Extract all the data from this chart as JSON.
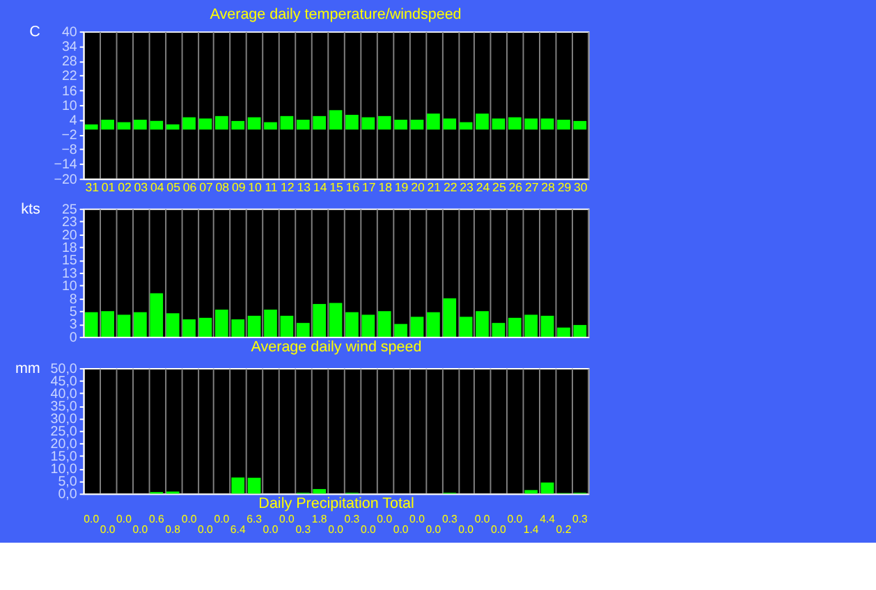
{
  "chart_data": [
    {
      "type": "bar",
      "title": "Average daily temperature/windspeed",
      "ylabel": "C",
      "categories": [
        "31",
        "01",
        "02",
        "03",
        "04",
        "05",
        "06",
        "07",
        "08",
        "09",
        "10",
        "11",
        "12",
        "13",
        "14",
        "15",
        "16",
        "17",
        "18",
        "19",
        "20",
        "21",
        "22",
        "23",
        "24",
        "25",
        "26",
        "27",
        "28",
        "29",
        "30"
      ],
      "values": [
        2.1,
        4.0,
        3.0,
        4.0,
        3.5,
        2.1,
        5.0,
        4.5,
        5.5,
        3.5,
        5.0,
        3.0,
        5.5,
        4.0,
        5.5,
        7.9,
        6.0,
        5.0,
        5.5,
        4.0,
        4.0,
        6.5,
        4.5,
        3.0,
        6.5,
        4.5,
        5.0,
        4.5,
        4.5,
        4.0,
        3.5
      ],
      "color": "#00ff00",
      "ylim": [
        -20,
        40
      ],
      "yticks": [
        -20,
        -14,
        -8,
        -2,
        4,
        10,
        16,
        22,
        28,
        34,
        40
      ],
      "grid": "x"
    },
    {
      "type": "bar",
      "xlabel": "Average daily wind speed",
      "ylabel": "kts",
      "categories": [
        "31",
        "01",
        "02",
        "03",
        "04",
        "05",
        "06",
        "07",
        "08",
        "09",
        "10",
        "11",
        "12",
        "13",
        "14",
        "15",
        "16",
        "17",
        "18",
        "19",
        "20",
        "21",
        "22",
        "23",
        "24",
        "25",
        "26",
        "27",
        "28",
        "29",
        "30"
      ],
      "values": [
        4.8,
        5.0,
        4.3,
        4.8,
        8.5,
        4.6,
        3.4,
        3.7,
        5.3,
        3.4,
        4.1,
        5.3,
        4.1,
        2.7,
        6.4,
        6.6,
        4.8,
        4.3,
        5.0,
        2.5,
        3.9,
        4.8,
        7.5,
        3.9,
        5.0,
        2.7,
        3.7,
        4.3,
        4.1,
        1.8,
        2.3
      ],
      "color": "#00ff00",
      "ylim": [
        0,
        25
      ],
      "yticks": [
        0,
        {
          "value": 2.5,
          "label": "3"
        },
        5,
        {
          "value": 7.5,
          "label": "8"
        },
        10,
        {
          "value": 12.5,
          "label": "13"
        },
        15,
        {
          "value": 17.5,
          "label": "18"
        },
        20,
        {
          "value": 22.5,
          "label": "23"
        },
        25
      ],
      "grid": "x",
      "tick_labels": "y"
    },
    {
      "type": "bar",
      "xlabel": "Daily Precipitation Total",
      "ylabel": "mm",
      "categories": [
        "31",
        "01",
        "02",
        "03",
        "04",
        "05",
        "06",
        "07",
        "08",
        "09",
        "10",
        "11",
        "12",
        "13",
        "14",
        "15",
        "16",
        "17",
        "18",
        "19",
        "20",
        "21",
        "22",
        "23",
        "24",
        "25",
        "26",
        "27",
        "28",
        "29",
        "30"
      ],
      "values": [
        0.0,
        0.0,
        0.0,
        0.0,
        0.6,
        0.8,
        0.0,
        0.0,
        0.0,
        6.4,
        6.3,
        0.0,
        0.0,
        0.3,
        1.8,
        0.0,
        0.3,
        0.0,
        0.0,
        0.0,
        0.0,
        0.0,
        0.3,
        0.0,
        0.0,
        0.0,
        0.0,
        1.4,
        4.4,
        0.2,
        0.3
      ],
      "value_labels": [
        "0.0",
        "0.0",
        "0.0",
        "0.0",
        "0.6",
        "0.8",
        "0.0",
        "0.0",
        "0.0",
        "6.4",
        "6.3",
        "0.0",
        "0.0",
        "0.3",
        "1.8",
        "0.0",
        "0.3",
        "0.0",
        "0.0",
        "0.0",
        "0.0",
        "0.0",
        "0.3",
        "0.0",
        "0.0",
        "0.0",
        "0.0",
        "1.4",
        "4.4",
        "0.2",
        "0.3"
      ],
      "color": "#00ff00",
      "ylim": [
        0,
        50
      ],
      "yticks": [
        {
          "value": 0,
          "label": "0,0"
        },
        {
          "value": 5,
          "label": "5,0"
        },
        {
          "value": 10,
          "label": "10,0"
        },
        {
          "value": 15,
          "label": "15,0"
        },
        {
          "value": 20,
          "label": "20,0"
        },
        {
          "value": 25,
          "label": "25,0"
        },
        {
          "value": 30,
          "label": "30,0"
        },
        {
          "value": 35,
          "label": "35,0"
        },
        {
          "value": 40,
          "label": "40,0"
        },
        {
          "value": 45,
          "label": "45,0"
        },
        {
          "value": 50,
          "label": "50,0"
        }
      ],
      "grid": "x",
      "tick_labels": "y"
    }
  ]
}
